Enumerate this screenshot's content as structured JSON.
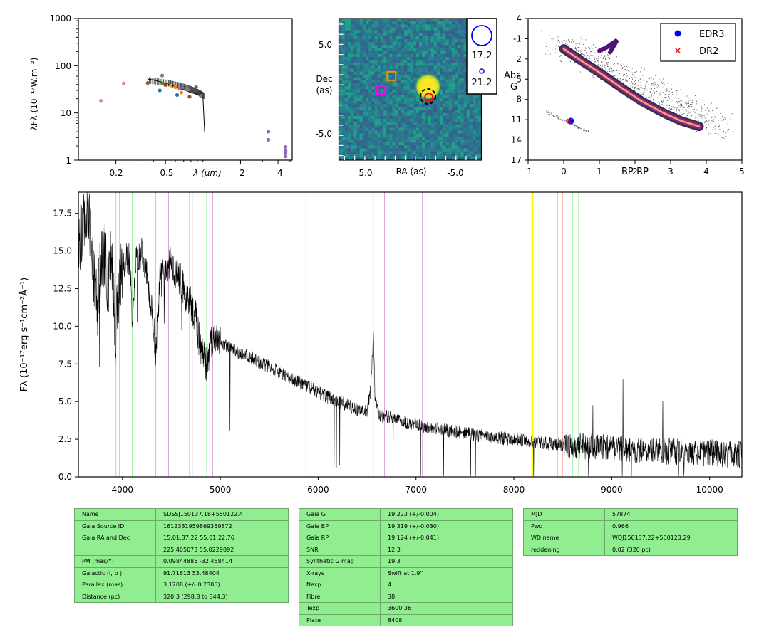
{
  "sed": {
    "ylabel": "λFλ (10⁻¹⁷W.m⁻²)",
    "xlabel": "λ (µm)",
    "yticks": [
      "1000",
      "100",
      "10",
      "1"
    ],
    "xticks": [
      "0.2",
      "0.5",
      "2",
      "4"
    ]
  },
  "image": {
    "ylabel_1": "Dec",
    "ylabel_2": "(as)",
    "xlabel": "RA (as)",
    "yticks": [
      "5.0",
      "-5.0"
    ],
    "xticks": [
      "5.0",
      "-5.0"
    ],
    "mag_big": "17.2",
    "mag_small": "21.2"
  },
  "hrd": {
    "ylabel": "Abs G",
    "xlabel": "BP-RP",
    "yticks": [
      "-4",
      "-1",
      "2",
      "5",
      "8",
      "11",
      "14",
      "17"
    ],
    "xticks": [
      "-1",
      "0",
      "1",
      "2",
      "3",
      "4",
      "5"
    ],
    "legend_edr3": "EDR3",
    "legend_dr2": "DR2",
    "colors": {
      "edr3": "#0000ff",
      "dr2": "#ff0000"
    }
  },
  "chart_data": [
    {
      "type": "scatter",
      "panel": "sed",
      "xscale": "log",
      "yscale": "log",
      "xlim": [
        0.1,
        5.2
      ],
      "ylim": [
        1,
        1000
      ],
      "points": [
        {
          "x": 0.152,
          "y": 18.0,
          "color": "#e377c2"
        },
        {
          "x": 0.231,
          "y": 42.0,
          "color": "#e377c2"
        },
        {
          "x": 0.36,
          "y": 43.0,
          "color": "#8c564b"
        },
        {
          "x": 0.45,
          "y": 30.0,
          "color": "#1f77b4"
        },
        {
          "x": 0.47,
          "y": 62.0,
          "color": "#7f7f7f"
        },
        {
          "x": 0.48,
          "y": 42.0,
          "color": "#2ca02c"
        },
        {
          "x": 0.5,
          "y": 39.0,
          "color": "#d62728"
        },
        {
          "x": 0.55,
          "y": 38.0,
          "color": "#bcbd22"
        },
        {
          "x": 0.6,
          "y": 35.0,
          "color": "#ff7f0e"
        },
        {
          "x": 0.62,
          "y": 24.0,
          "color": "#1f77b4"
        },
        {
          "x": 0.65,
          "y": 33.0,
          "color": "#9467bd"
        },
        {
          "x": 0.67,
          "y": 27.0,
          "color": "#ff7f0e"
        },
        {
          "x": 0.75,
          "y": 31.0,
          "color": "#7f7f7f"
        },
        {
          "x": 0.78,
          "y": 22.0,
          "color": "#8c564b"
        },
        {
          "x": 0.88,
          "y": 35.0,
          "color": "#8c564b"
        },
        {
          "x": 0.96,
          "y": 23.0,
          "color": "#7f7f7f"
        },
        {
          "x": 3.35,
          "y": 4.0,
          "color": "#9467bd"
        },
        {
          "x": 3.35,
          "y": 2.7,
          "color": "#9467bd"
        },
        {
          "x": 4.6,
          "y": 1.9,
          "color": "#9467bd"
        },
        {
          "x": 4.6,
          "y": 1.6,
          "color": "#9467bd"
        },
        {
          "x": 4.6,
          "y": 1.4,
          "color": "#9467bd"
        },
        {
          "x": 4.6,
          "y": 1.2,
          "color": "#9467bd"
        }
      ],
      "spectrum_line": {
        "x": [
          0.36,
          0.4,
          0.45,
          0.5,
          0.6,
          0.7,
          0.8,
          0.9,
          1.0,
          1.03
        ],
        "y": [
          52,
          50,
          46,
          43,
          36,
          31,
          27,
          25,
          21,
          4
        ]
      }
    },
    {
      "type": "heatmap",
      "panel": "image",
      "xlabel": "RA (as)",
      "ylabel": "Dec (as)",
      "xlim": [
        8,
        -8
      ],
      "ylim": [
        -8,
        8
      ],
      "source": {
        "x": -2.0,
        "y": 0.3
      },
      "markers": [
        {
          "shape": "square",
          "color": "#ff8c00",
          "x": 2.1,
          "y": 1.5
        },
        {
          "shape": "square",
          "color": "#ff00ff",
          "x": 3.3,
          "y": -0.1
        },
        {
          "shape": "circle",
          "color": "#ff0000",
          "x": -2.1,
          "y": -0.9
        },
        {
          "shape": "dashed-circle",
          "color": "#000000",
          "x": -2.0,
          "y": -0.8
        }
      ]
    },
    {
      "type": "scatter",
      "panel": "hrd",
      "xlabel": "BP-RP",
      "ylabel": "Abs G",
      "xlim": [
        -1,
        5
      ],
      "ylim": [
        17,
        -4
      ],
      "target": {
        "edr3": {
          "x": 0.2,
          "y": 11.2
        },
        "dr2": {
          "x": 0.15,
          "y": 11.2
        }
      }
    },
    {
      "type": "line",
      "panel": "spectrum",
      "xlabel": "",
      "ylabel": "Fλ (10⁻¹⁷erg s⁻¹cm⁻²Å⁻¹)",
      "xlim": [
        3550,
        10330
      ],
      "ylim": [
        0,
        18.9
      ],
      "xticks": [
        4000,
        5000,
        6000,
        7000,
        8000,
        9000,
        10000
      ],
      "yticks": [
        "0.0",
        "2.5",
        "5.0",
        "7.5",
        "10.0",
        "12.5",
        "15.0",
        "17.5"
      ],
      "x": [
        3600,
        3650,
        3700,
        3750,
        3800,
        3850,
        3890,
        3930,
        3970,
        4000,
        4040,
        4080,
        4101,
        4130,
        4200,
        4250,
        4300,
        4340,
        4380,
        4430,
        4500,
        4550,
        4600,
        4650,
        4700,
        4750,
        4800,
        4861,
        4900,
        4950,
        5000,
        5100,
        5200,
        5300,
        5400,
        5500,
        5600,
        5700,
        5800,
        5900,
        6000,
        6100,
        6200,
        6300,
        6400,
        6500,
        6540,
        6563,
        6580,
        6620,
        6700,
        6800,
        6900,
        7000,
        7200,
        7400,
        7600,
        7800,
        8000,
        8200,
        8400,
        8600,
        8800,
        9000,
        9200,
        9400,
        9600,
        9800,
        10000,
        10200,
        10330
      ],
      "y": [
        16.5,
        17.5,
        14.0,
        12.0,
        15.5,
        13.0,
        14.5,
        9.5,
        13.0,
        13.5,
        15.0,
        14.0,
        10.0,
        14.5,
        14.8,
        13.5,
        11.0,
        8.5,
        12.8,
        13.5,
        14.2,
        13.5,
        13.0,
        11.8,
        11.5,
        10.5,
        8.5,
        7.5,
        8.8,
        9.4,
        8.9,
        8.6,
        8.2,
        8.0,
        7.6,
        7.3,
        7.0,
        6.6,
        6.3,
        6.0,
        5.6,
        5.3,
        5.0,
        4.8,
        4.5,
        4.3,
        6.0,
        9.5,
        5.5,
        4.0,
        4.0,
        3.8,
        3.6,
        3.5,
        3.2,
        3.0,
        2.8,
        2.6,
        2.5,
        2.3,
        2.2,
        2.1,
        2.0,
        1.9,
        1.8,
        1.7,
        1.7,
        1.6,
        1.6,
        1.5,
        1.5
      ],
      "lines": [
        {
          "x": 3934,
          "color": "#ffb6b6"
        },
        {
          "x": 3969,
          "color": "#ffb6b6"
        },
        {
          "x": 4101,
          "color": "#90ee90"
        },
        {
          "x": 4340,
          "color": "#90ee90"
        },
        {
          "x": 4471,
          "color": "#dda0dd"
        },
        {
          "x": 4686,
          "color": "#dda0dd"
        },
        {
          "x": 4713,
          "color": "#dda0dd"
        },
        {
          "x": 4861,
          "color": "#90ee90"
        },
        {
          "x": 4922,
          "color": "#dda0dd"
        },
        {
          "x": 5876,
          "color": "#dda0dd"
        },
        {
          "x": 6563,
          "color": "#90ee90"
        },
        {
          "x": 6678,
          "color": "#dda0dd"
        },
        {
          "x": 7065,
          "color": "#dda0dd"
        },
        {
          "x": 8190,
          "color": "#ffff00",
          "width": 3
        },
        {
          "x": 8446,
          "color": "#90ee90"
        },
        {
          "x": 8498,
          "color": "#ffb6b6"
        },
        {
          "x": 8542,
          "color": "#ffb6b6"
        },
        {
          "x": 8598,
          "color": "#90ee90"
        },
        {
          "x": 8662,
          "color": "#90ee90"
        }
      ]
    }
  ],
  "tables": {
    "t1": [
      [
        "Name",
        "SDSSJ150137.18+550122.4"
      ],
      [
        "Gaia Source ID",
        "1612331959869359872"
      ],
      [
        "Gaia RA and Dec",
        "15:01:37.22    55:01:22.76"
      ],
      [
        "",
        "225.405073    55.0229892"
      ],
      [
        "PM (mas/Y)",
        "0.09844885    -32.458414"
      ],
      [
        "Galactic (l, b )",
        "91.71613    53.48404"
      ],
      [
        "Parallax (mas)",
        "3.1208 (+/- 0.2305)"
      ],
      [
        "Distance (pc)",
        "320.3 (298.8 to 344.3)"
      ]
    ],
    "t2": [
      [
        "Gaia G",
        "19.223 (+/-0.004)"
      ],
      [
        "Gaia BP",
        "19.319 (+/-0.030)"
      ],
      [
        "Gaia RP",
        "19.124 (+/-0.041)"
      ],
      [
        "SNR",
        "12.3"
      ],
      [
        "Synthetic G mag",
        "19.3"
      ],
      [
        "X-rays",
        "Swift at 1.9\""
      ],
      [
        "Nexp",
        "4"
      ],
      [
        "Fibre",
        "38"
      ],
      [
        "Texp",
        "3600.36"
      ],
      [
        "Plate",
        "8408"
      ]
    ],
    "t3": [
      [
        "MJD",
        "57874"
      ],
      [
        "Pwd",
        "0.966"
      ],
      [
        "WD name",
        "WDJ150137.22+550123.29"
      ],
      [
        "reddening",
        "0.02 (320 pc)"
      ]
    ]
  }
}
